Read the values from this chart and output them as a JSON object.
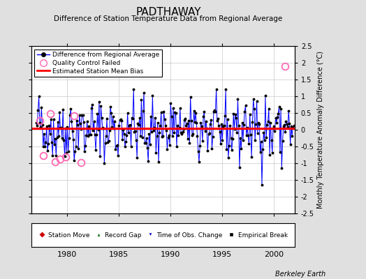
{
  "title": "PADTHAWAY",
  "subtitle": "Difference of Station Temperature Data from Regional Average",
  "ylabel": "Monthly Temperature Anomaly Difference (°C)",
  "xlabel_ticks": [
    1980,
    1985,
    1990,
    1995,
    2000
  ],
  "ylim": [
    -2.5,
    2.5
  ],
  "xlim": [
    1976.5,
    2002.0
  ],
  "bias_value": 0.05,
  "line_color": "#0000FF",
  "bias_color": "#FF0000",
  "qc_color": "#FF69B4",
  "background_color": "#E0E0E0",
  "plot_bg_color": "#FFFFFF",
  "grid_color": "#C8C8C8",
  "watermark": "Berkeley Earth",
  "seed": 42,
  "num_points": 300,
  "start_year": 1977.0,
  "qc_x": [
    1977.33,
    1977.67,
    1978.33,
    1978.83,
    1979.33,
    1979.83,
    1980.67,
    1981.33,
    2001.08
  ],
  "qc_y": [
    0.28,
    -0.78,
    0.48,
    -0.95,
    -0.88,
    -0.82,
    0.42,
    -0.98,
    1.9
  ]
}
